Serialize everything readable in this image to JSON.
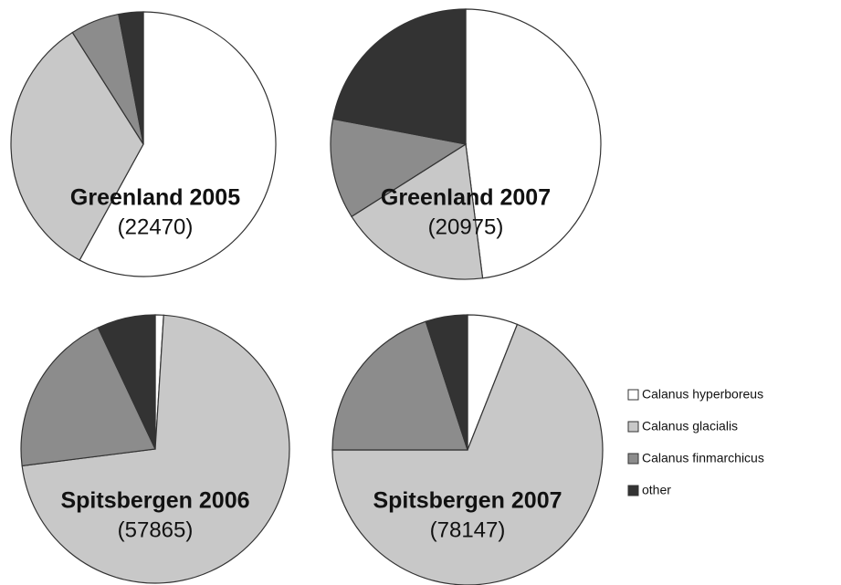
{
  "chart_data": [
    {
      "type": "pie",
      "title": "Greenland 2005",
      "subtitle": "(22470)",
      "categories": [
        "Calanus hyperboreus",
        "Calanus glacialis",
        "Calanus finmarchicus",
        "other"
      ],
      "values": [
        58,
        33,
        6,
        3
      ],
      "colors": [
        "#ffffff",
        "#c8c8c8",
        "#8c8c8c",
        "#333333"
      ]
    },
    {
      "type": "pie",
      "title": "Greenland 2007",
      "subtitle": "(20975)",
      "categories": [
        "Calanus hyperboreus",
        "Calanus glacialis",
        "Calanus finmarchicus",
        "other"
      ],
      "values": [
        48,
        18,
        12,
        22
      ],
      "colors": [
        "#ffffff",
        "#c8c8c8",
        "#8c8c8c",
        "#333333"
      ]
    },
    {
      "type": "pie",
      "title": "Spitsbergen 2006",
      "subtitle": "(57865)",
      "categories": [
        "Calanus hyperboreus",
        "Calanus glacialis",
        "Calanus finmarchicus",
        "other"
      ],
      "values": [
        1,
        72,
        20,
        7
      ],
      "colors": [
        "#ffffff",
        "#c8c8c8",
        "#8c8c8c",
        "#333333"
      ]
    },
    {
      "type": "pie",
      "title": "Spitsbergen 2007",
      "subtitle": "(78147)",
      "categories": [
        "Calanus hyperboreus",
        "Calanus glacialis",
        "Calanus finmarchicus",
        "other"
      ],
      "values": [
        6,
        69,
        20,
        5
      ],
      "colors": [
        "#ffffff",
        "#c8c8c8",
        "#8c8c8c",
        "#333333"
      ]
    }
  ]
}
